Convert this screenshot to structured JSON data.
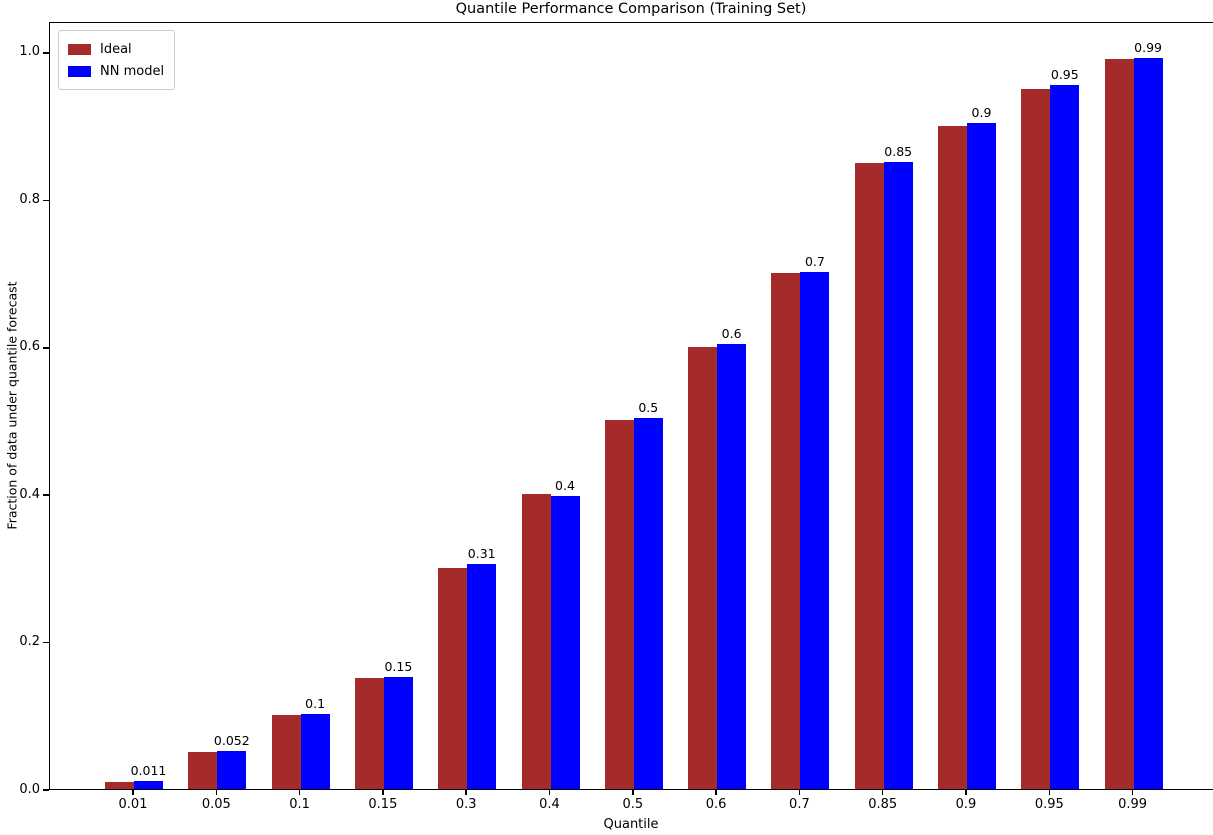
{
  "chart_data": {
    "type": "bar",
    "title": "Quantile Performance Comparison (Training Set)",
    "xlabel": "Quantile",
    "ylabel": "Fraction of data under quantile forecast",
    "categories": [
      "0.01",
      "0.05",
      "0.1",
      "0.15",
      "0.3",
      "0.4",
      "0.5",
      "0.6",
      "0.7",
      "0.85",
      "0.9",
      "0.95",
      "0.99"
    ],
    "series": [
      {
        "name": "Ideal",
        "color": "#A52A2A",
        "values": [
          0.01,
          0.05,
          0.1,
          0.15,
          0.3,
          0.4,
          0.5,
          0.6,
          0.7,
          0.85,
          0.9,
          0.95,
          0.99
        ]
      },
      {
        "name": "NN model",
        "color": "#0000FF",
        "values": [
          0.011,
          0.052,
          0.102,
          0.152,
          0.305,
          0.398,
          0.503,
          0.604,
          0.701,
          0.851,
          0.903,
          0.955,
          0.992
        ]
      }
    ],
    "bar_value_labels": [
      "0.011",
      "0.052",
      "0.1",
      "0.15",
      "0.31",
      "0.4",
      "0.5",
      "0.6",
      "0.7",
      "0.85",
      "0.9",
      "0.95",
      "0.99"
    ],
    "yticks": [
      "0.0",
      "0.2",
      "0.4",
      "0.6",
      "0.8",
      "1.0"
    ],
    "ylim": [
      0,
      1.042
    ],
    "grid": false,
    "legend_position": "upper-left",
    "background_color": "#ffffff",
    "axis_color": "#000000"
  }
}
